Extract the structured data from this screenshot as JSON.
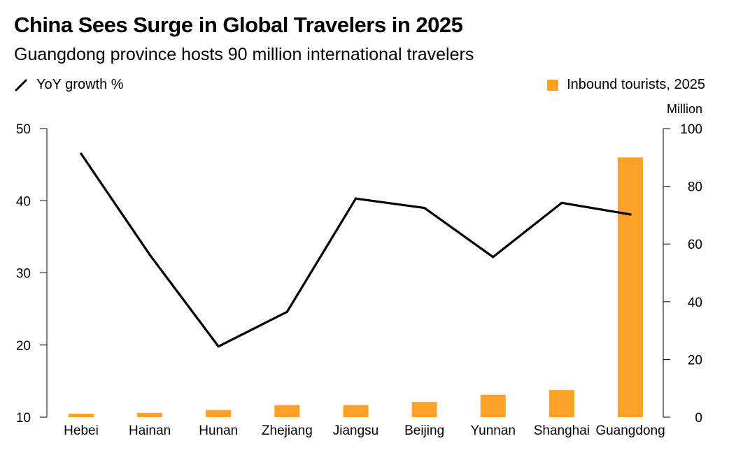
{
  "chart_data": {
    "type": "bar+line",
    "title": "China Sees Surge in Global Travelers in 2025",
    "subtitle": "Guangdong province hosts 90 million international travelers",
    "categories": [
      "Hebei",
      "Hainan",
      "Hunan",
      "Zhejiang",
      "Jiangsu",
      "Beijing",
      "Yunnan",
      "Shanghai",
      "Guangdong"
    ],
    "series": [
      {
        "name": "YoY growth %",
        "type": "line",
        "axis": "left",
        "color": "#000000",
        "values": [
          46.5,
          32.5,
          19.8,
          24.6,
          40.3,
          39.0,
          32.2,
          39.7,
          38.1
        ]
      },
      {
        "name": "Inbound tourists, 2025",
        "type": "bar",
        "axis": "right",
        "color": "#FFA126",
        "values": [
          1.2,
          1.5,
          2.5,
          4.2,
          4.2,
          5.3,
          7.8,
          9.4,
          90.0
        ]
      }
    ],
    "left_axis": {
      "label": "",
      "ylim": [
        10,
        50
      ],
      "ticks": [
        10,
        20,
        30,
        40,
        50
      ]
    },
    "right_axis": {
      "label": "Million",
      "ylim": [
        0,
        100
      ],
      "ticks": [
        0,
        20,
        40,
        60,
        80,
        100
      ]
    },
    "grid": false,
    "legend": [
      "top-left",
      "top-right"
    ]
  }
}
